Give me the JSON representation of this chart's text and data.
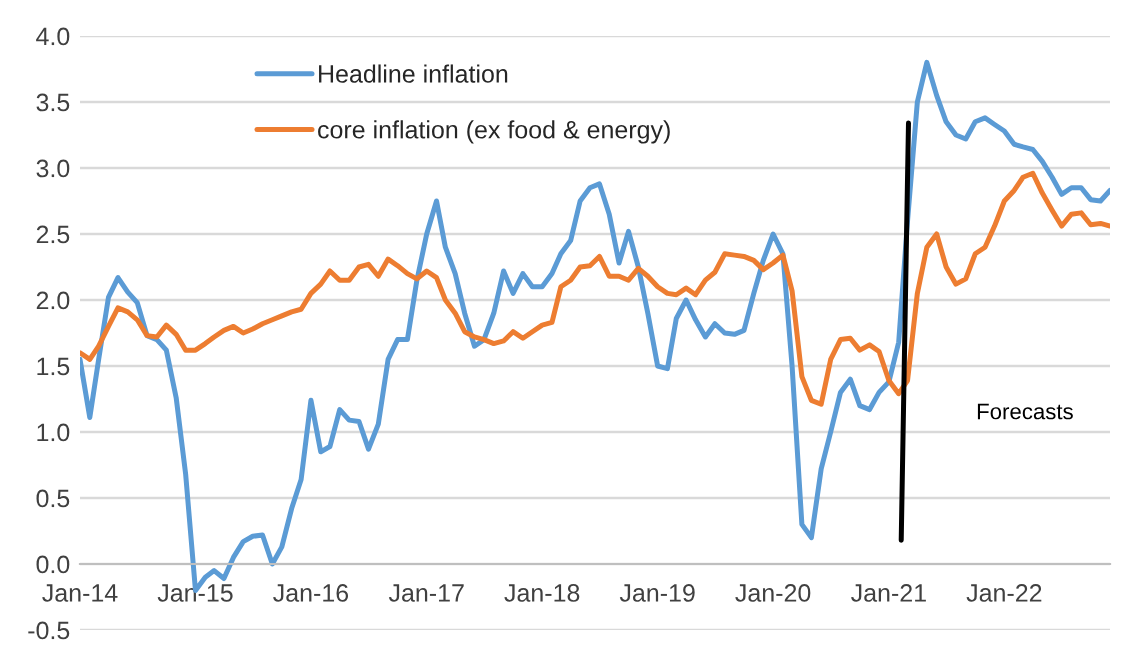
{
  "chart_data": {
    "type": "line",
    "x": [
      "2014-01",
      "2014-02",
      "2014-03",
      "2014-04",
      "2014-05",
      "2014-06",
      "2014-07",
      "2014-08",
      "2014-09",
      "2014-10",
      "2014-11",
      "2014-12",
      "2015-01",
      "2015-02",
      "2015-03",
      "2015-04",
      "2015-05",
      "2015-06",
      "2015-07",
      "2015-08",
      "2015-09",
      "2015-10",
      "2015-11",
      "2015-12",
      "2016-01",
      "2016-02",
      "2016-03",
      "2016-04",
      "2016-05",
      "2016-06",
      "2016-07",
      "2016-08",
      "2016-09",
      "2016-10",
      "2016-11",
      "2016-12",
      "2017-01",
      "2017-02",
      "2017-03",
      "2017-04",
      "2017-05",
      "2017-06",
      "2017-07",
      "2017-08",
      "2017-09",
      "2017-10",
      "2017-11",
      "2017-12",
      "2018-01",
      "2018-02",
      "2018-03",
      "2018-04",
      "2018-05",
      "2018-06",
      "2018-07",
      "2018-08",
      "2018-09",
      "2018-10",
      "2018-11",
      "2018-12",
      "2019-01",
      "2019-02",
      "2019-03",
      "2019-04",
      "2019-05",
      "2019-06",
      "2019-07",
      "2019-08",
      "2019-09",
      "2019-10",
      "2019-11",
      "2019-12",
      "2020-01",
      "2020-02",
      "2020-03",
      "2020-04",
      "2020-05",
      "2020-06",
      "2020-07",
      "2020-08",
      "2020-09",
      "2020-10",
      "2020-11",
      "2020-12",
      "2021-01",
      "2021-02",
      "2021-03",
      "2021-04",
      "2021-05",
      "2021-06",
      "2021-07",
      "2021-08",
      "2021-09",
      "2021-10",
      "2021-11",
      "2021-12",
      "2022-01",
      "2022-02",
      "2022-03",
      "2022-04",
      "2022-05",
      "2022-06",
      "2022-07",
      "2022-08",
      "2022-09",
      "2022-10",
      "2022-11",
      "2022-12"
    ],
    "series": [
      {
        "name": "Headline inflation",
        "color": "#5b9bd5",
        "values": [
          1.55,
          1.11,
          1.55,
          2.02,
          2.17,
          2.06,
          1.98,
          1.73,
          1.7,
          1.62,
          1.26,
          0.68,
          -0.2,
          -0.1,
          -0.05,
          -0.11,
          0.05,
          0.17,
          0.21,
          0.22,
          0.0,
          0.13,
          0.42,
          0.64,
          1.24,
          0.85,
          0.89,
          1.17,
          1.09,
          1.08,
          0.87,
          1.06,
          1.55,
          1.7,
          1.7,
          2.15,
          2.5,
          2.75,
          2.4,
          2.2,
          1.9,
          1.65,
          1.7,
          1.9,
          2.22,
          2.05,
          2.2,
          2.1,
          2.1,
          2.2,
          2.35,
          2.45,
          2.75,
          2.85,
          2.88,
          2.65,
          2.28,
          2.52,
          2.25,
          1.9,
          1.5,
          1.48,
          1.86,
          2.0,
          1.85,
          1.72,
          1.82,
          1.75,
          1.74,
          1.77,
          2.05,
          2.3,
          2.5,
          2.35,
          1.5,
          0.3,
          0.2,
          0.72,
          1.0,
          1.3,
          1.4,
          1.2,
          1.17,
          1.3,
          1.38,
          1.68,
          2.6,
          3.5,
          3.8,
          3.55,
          3.35,
          3.25,
          3.22,
          3.35,
          3.38,
          3.33,
          3.28,
          3.18,
          3.16,
          3.14,
          3.05,
          2.93,
          2.8,
          2.85,
          2.85,
          2.76,
          2.75,
          2.83
        ]
      },
      {
        "name": "core inflation (ex food & energy)",
        "color": "#ed7d31",
        "values": [
          1.6,
          1.55,
          1.65,
          1.8,
          1.94,
          1.91,
          1.85,
          1.73,
          1.72,
          1.81,
          1.74,
          1.62,
          1.62,
          1.67,
          1.72,
          1.77,
          1.8,
          1.75,
          1.78,
          1.82,
          1.85,
          1.88,
          1.91,
          1.93,
          2.05,
          2.12,
          2.22,
          2.15,
          2.15,
          2.25,
          2.27,
          2.18,
          2.31,
          2.26,
          2.2,
          2.16,
          2.22,
          2.17,
          2.0,
          1.9,
          1.76,
          1.72,
          1.7,
          1.67,
          1.69,
          1.76,
          1.71,
          1.76,
          1.81,
          1.83,
          2.1,
          2.15,
          2.25,
          2.26,
          2.33,
          2.18,
          2.18,
          2.15,
          2.24,
          2.18,
          2.1,
          2.05,
          2.04,
          2.09,
          2.04,
          2.15,
          2.21,
          2.35,
          2.34,
          2.33,
          2.3,
          2.23,
          2.28,
          2.34,
          2.07,
          1.42,
          1.24,
          1.21,
          1.55,
          1.7,
          1.71,
          1.62,
          1.66,
          1.61,
          1.39,
          1.29,
          1.39,
          2.05,
          2.4,
          2.5,
          2.25,
          2.12,
          2.16,
          2.35,
          2.4,
          2.56,
          2.75,
          2.83,
          2.93,
          2.96,
          2.81,
          2.68,
          2.56,
          2.65,
          2.66,
          2.57,
          2.58,
          2.56
        ]
      },
      {
        "color": "#000000",
        "x": [
          "2021-02-09",
          "2021-03-04"
        ],
        "values": [
          0.18,
          3.34
        ]
      }
    ],
    "xlim": [
      "2014-01",
      "2022-12"
    ],
    "xticks": [
      {
        "value": "2014-01",
        "label": "Jan-14"
      },
      {
        "value": "2015-01",
        "label": "Jan-15"
      },
      {
        "value": "2016-01",
        "label": "Jan-16"
      },
      {
        "value": "2017-01",
        "label": "Jan-17"
      },
      {
        "value": "2018-01",
        "label": "Jan-18"
      },
      {
        "value": "2019-01",
        "label": "Jan-19"
      },
      {
        "value": "2020-01",
        "label": "Jan-20"
      },
      {
        "value": "2021-01",
        "label": "Jan-21"
      },
      {
        "value": "2022-01",
        "label": "Jan-22"
      }
    ],
    "ylim": [
      -0.5,
      4.0
    ],
    "yticks": [
      {
        "value": -0.5,
        "label": "-0.5"
      },
      {
        "value": 0,
        "label": "0.0"
      },
      {
        "value": 0.5,
        "label": "0.5"
      },
      {
        "value": 1,
        "label": "1.0"
      },
      {
        "value": 1.5,
        "label": "1.5"
      },
      {
        "value": 2,
        "label": "2.0"
      },
      {
        "value": 2.5,
        "label": "2.5"
      },
      {
        "value": 3,
        "label": "3.0"
      },
      {
        "value": 3.5,
        "label": "3.5"
      },
      {
        "value": 4,
        "label": "4.0"
      }
    ],
    "grid": "y",
    "legend": "top",
    "annotations": [
      "Forecasts"
    ]
  }
}
